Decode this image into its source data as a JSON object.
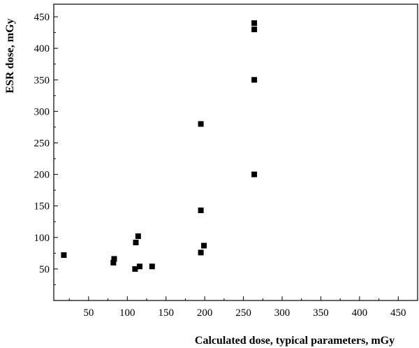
{
  "chart_data": {
    "type": "scatter",
    "title": "",
    "xlabel": "Calculated dose, typical parameters, mGy",
    "ylabel": "ESR dose, mGy",
    "xlim": [
      5,
      475
    ],
    "ylim": [
      0,
      470
    ],
    "x_ticks": [
      50,
      100,
      150,
      200,
      250,
      300,
      350,
      400,
      450
    ],
    "y_ticks": [
      50,
      100,
      150,
      200,
      250,
      300,
      350,
      400,
      450
    ],
    "grid": false,
    "legend": "none",
    "marker": "filled-square",
    "marker_color": "#000000",
    "series": [
      {
        "points": [
          {
            "x": 18,
            "y": 72
          },
          {
            "x": 82,
            "y": 60
          },
          {
            "x": 83,
            "y": 66
          },
          {
            "x": 110,
            "y": 50
          },
          {
            "x": 111,
            "y": 92
          },
          {
            "x": 114,
            "y": 102
          },
          {
            "x": 116,
            "y": 54
          },
          {
            "x": 132,
            "y": 54
          },
          {
            "x": 195,
            "y": 280
          },
          {
            "x": 195,
            "y": 143
          },
          {
            "x": 195,
            "y": 76
          },
          {
            "x": 199,
            "y": 87
          },
          {
            "x": 264,
            "y": 440
          },
          {
            "x": 264,
            "y": 430
          },
          {
            "x": 264,
            "y": 350
          },
          {
            "x": 264,
            "y": 200
          }
        ]
      }
    ]
  }
}
